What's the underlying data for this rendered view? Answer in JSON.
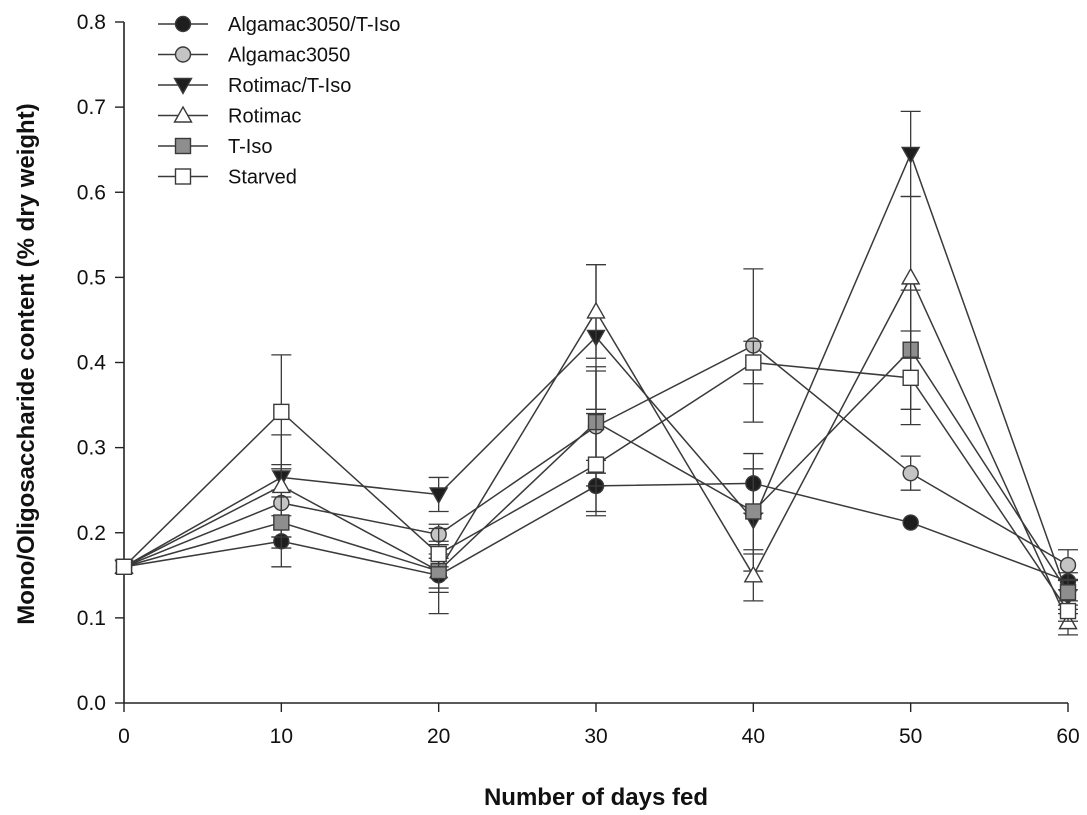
{
  "chart_data": {
    "type": "line",
    "title": "",
    "xlabel": "Number of days fed",
    "ylabel": "Mono/Oligosaccharide content (% dry weight)",
    "xlim": [
      0,
      60
    ],
    "ylim": [
      0.0,
      0.8
    ],
    "xticks": [
      0,
      10,
      20,
      30,
      40,
      50,
      60
    ],
    "xtick_labels": [
      "0",
      "10",
      "20",
      "30",
      "40",
      "50",
      "60"
    ],
    "yticks": [
      0.0,
      0.1,
      0.2,
      0.3,
      0.4,
      0.5,
      0.6,
      0.7,
      0.8
    ],
    "ytick_labels": [
      "0.0",
      "0.1",
      "0.2",
      "0.3",
      "0.4",
      "0.5",
      "0.6",
      "0.7",
      "0.8"
    ],
    "grid": false,
    "legend_position": "top-left",
    "x": [
      0,
      10,
      20,
      30,
      40,
      50,
      60
    ],
    "series": [
      {
        "name": "Algamac3050/T-Iso",
        "marker": "circle",
        "fill": "#1e1e1e",
        "values": [
          0.16,
          0.19,
          0.15,
          0.255,
          0.258,
          0.212,
          0.143
        ],
        "errors": [
          0,
          0.03,
          0.02,
          0.03,
          0.035,
          0,
          0.01
        ]
      },
      {
        "name": "Algamac3050",
        "marker": "circle",
        "fill": "#c4c4c4",
        "values": [
          0.16,
          0.235,
          0.198,
          0.325,
          0.42,
          0.27,
          0.162
        ],
        "errors": [
          0,
          0.04,
          0.012,
          0.07,
          0.09,
          0.02,
          0.018
        ]
      },
      {
        "name": "Rotimac/T-Iso",
        "marker": "triangle-down",
        "fill": "#1e1e1e",
        "values": [
          0.16,
          0.265,
          0.245,
          0.43,
          0.215,
          0.645,
          0.125
        ],
        "errors": [
          0,
          0.015,
          0.02,
          0.085,
          0.06,
          0.05,
          0.02
        ]
      },
      {
        "name": "Rotimac",
        "marker": "triangle-up",
        "fill": "#ffffff",
        "values": [
          0.16,
          0.255,
          0.155,
          0.46,
          0.15,
          0.5,
          0.095
        ],
        "errors": [
          0,
          0.06,
          0.05,
          0.055,
          0.03,
          0.095,
          0.015
        ]
      },
      {
        "name": "T-Iso",
        "marker": "square",
        "fill": "#8e8e8e",
        "values": [
          0.16,
          0.212,
          0.155,
          0.33,
          0.225,
          0.415,
          0.13
        ],
        "errors": [
          0,
          0.03,
          0.02,
          0.06,
          0.05,
          0.07,
          0.015
        ]
      },
      {
        "name": "Starved",
        "marker": "square",
        "fill": "#ffffff",
        "values": [
          0.16,
          0.342,
          0.175,
          0.28,
          0.4,
          0.382,
          0.108
        ],
        "errors": [
          0,
          0.067,
          0.015,
          0.06,
          0.025,
          0.055,
          0.012
        ]
      }
    ]
  }
}
